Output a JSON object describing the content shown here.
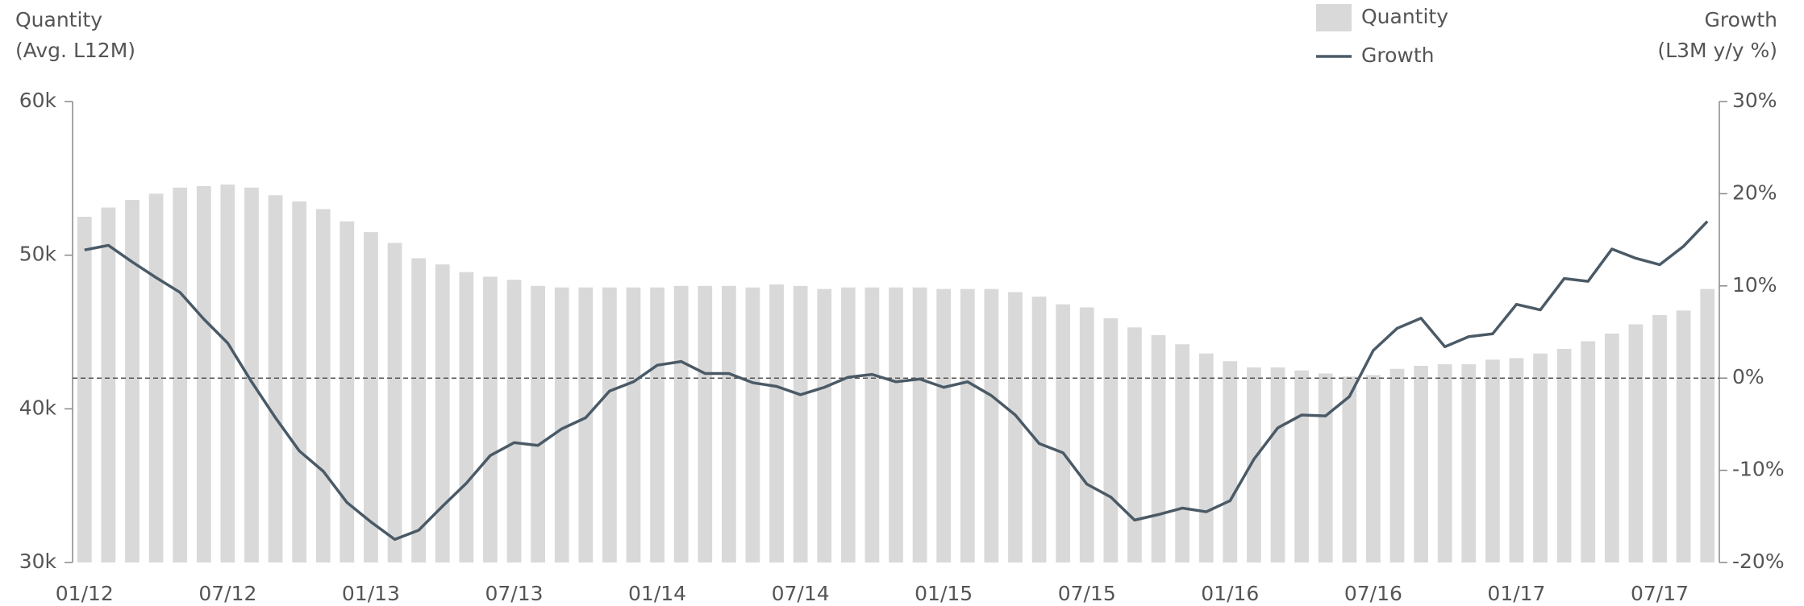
{
  "chart_data": {
    "type": "bar_line",
    "y_label": [
      "Quantity",
      "(Avg. L12M)"
    ],
    "y2_label": [
      "Growth",
      "(L3M y/y %)"
    ],
    "categories": [
      "01/12",
      null,
      null,
      null,
      null,
      null,
      "07/12",
      null,
      null,
      null,
      null,
      null,
      "01/13",
      null,
      null,
      null,
      null,
      null,
      "07/13",
      null,
      null,
      null,
      null,
      null,
      "01/14",
      null,
      null,
      null,
      null,
      null,
      "07/14",
      null,
      null,
      null,
      null,
      null,
      "01/15",
      null,
      null,
      null,
      null,
      null,
      "07/15",
      null,
      null,
      null,
      null,
      null,
      "01/16",
      null,
      null,
      null,
      null,
      null,
      "07/16",
      null,
      null,
      null,
      null,
      null,
      "01/17",
      null,
      null,
      null,
      null,
      null,
      "07/17",
      null,
      null
    ],
    "series": [
      {
        "name": "Quantity",
        "color": "#d9d9d9",
        "kind": "bar",
        "values": [
          52500,
          53100,
          53600,
          54000,
          54400,
          54500,
          54600,
          54400,
          53900,
          53500,
          53000,
          52200,
          51500,
          50800,
          49800,
          49400,
          48900,
          48600,
          48400,
          48000,
          47900,
          47900,
          47900,
          47900,
          47900,
          48000,
          48000,
          48000,
          47900,
          48100,
          48000,
          47800,
          47900,
          47900,
          47900,
          47900,
          47800,
          47800,
          47800,
          47600,
          47300,
          46800,
          46600,
          45900,
          45300,
          44800,
          44200,
          43600,
          43100,
          42700,
          42700,
          42500,
          42300,
          42100,
          42200,
          42600,
          42800,
          42900,
          42900,
          43200,
          43300,
          43600,
          43900,
          44400,
          44900,
          45500,
          46100,
          46400,
          47800
        ]
      },
      {
        "name": "Growth",
        "color": "#4a5a66",
        "kind": "line",
        "axis": "y2",
        "values": [
          13.9,
          14.4,
          12.6,
          10.9,
          9.3,
          6.4,
          3.8,
          -0.4,
          -4.3,
          -7.9,
          -10.1,
          -13.5,
          -15.6,
          -17.5,
          -16.5,
          -13.9,
          -11.4,
          -8.4,
          -7.0,
          -7.3,
          -5.5,
          -4.3,
          -1.4,
          -0.4,
          1.4,
          1.8,
          0.5,
          0.5,
          -0.5,
          -0.9,
          -1.8,
          -1.0,
          0.1,
          0.4,
          -0.4,
          -0.1,
          -1.0,
          -0.4,
          -1.9,
          -4.0,
          -7.1,
          -8.1,
          -11.5,
          -12.9,
          -15.4,
          -14.8,
          -14.1,
          -14.5,
          -13.3,
          -8.8,
          -5.4,
          -4.0,
          -4.1,
          -2.0,
          3.0,
          5.4,
          6.5,
          3.4,
          4.5,
          4.8,
          8.0,
          7.4,
          10.8,
          10.5,
          14.0,
          13.0,
          12.3,
          14.3,
          17.0
        ]
      }
    ],
    "ylim": [
      30000,
      60000
    ],
    "yticks": [
      {
        "value": 30000,
        "label": "30k"
      },
      {
        "value": 40000,
        "label": "40k"
      },
      {
        "value": 50000,
        "label": "50k"
      },
      {
        "value": 60000,
        "label": "60k"
      }
    ],
    "y2lim": [
      -20,
      30
    ],
    "y2ticks": [
      {
        "value": -20,
        "label": "-20%"
      },
      {
        "value": -10,
        "label": "-10%"
      },
      {
        "value": 0,
        "label": "0%"
      },
      {
        "value": 10,
        "label": "10%"
      },
      {
        "value": 20,
        "label": "20%"
      },
      {
        "value": 30,
        "label": "30%"
      }
    ],
    "reference_line": {
      "axis": "y2",
      "value": 0
    },
    "legend": "top-right"
  }
}
